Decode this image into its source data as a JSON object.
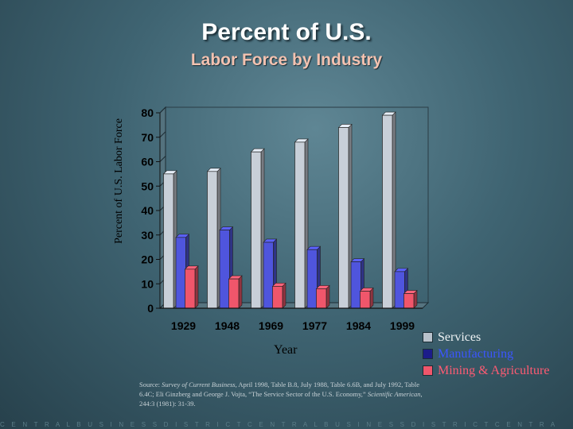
{
  "chart_data": {
    "type": "bar",
    "title": "Percent of U.S.",
    "subtitle": "Labor Force by Industry",
    "xlabel": "Year",
    "ylabel": "Percent of U.S. Labor Force",
    "categories": [
      "1929",
      "1948",
      "1969",
      "1977",
      "1984",
      "1999"
    ],
    "series": [
      {
        "name": "Services",
        "values": [
          55,
          56,
          64,
          68,
          74,
          79
        ]
      },
      {
        "name": "Manufacturing",
        "values": [
          29,
          32,
          27,
          24,
          19,
          15
        ]
      },
      {
        "name": "Mining & Agriculture",
        "values": [
          16,
          12,
          9,
          8,
          7,
          6
        ]
      }
    ],
    "ylim": [
      0,
      80
    ],
    "yticks": [
      0,
      10,
      20,
      30,
      40,
      50,
      60,
      70,
      80
    ],
    "legend_position": "bottom-right",
    "three_d": true
  },
  "colors": {
    "services": "#c8cfd8",
    "manufacturing": "#4f55dd",
    "mining": "#f0566b"
  },
  "legend": {
    "colors": [
      "#b9c2cc",
      "#1c1c8a",
      "#f0566b"
    ],
    "text_colors": [
      "#eef2f4",
      "#3b56ff",
      "#ff5b73"
    ]
  },
  "source": {
    "prefix": "Source: ",
    "italic1": "Survey of Current Business",
    "text1": ", April 1998, Table B.8, July 1988, Table 6.6B, and July 1992, Table 6.4C; Eli Ginzberg and George J. Vojta, “The Service Sector of the U.S. Economy,” ",
    "italic2": "Scientific American",
    "text2": ", 244:3 (1981): 31-39."
  },
  "footer": "C E N T R A L B U S I N E S S D I S T R I C T C E N T R A L B U S I N E S S D I S T R I C T C E N T R A"
}
